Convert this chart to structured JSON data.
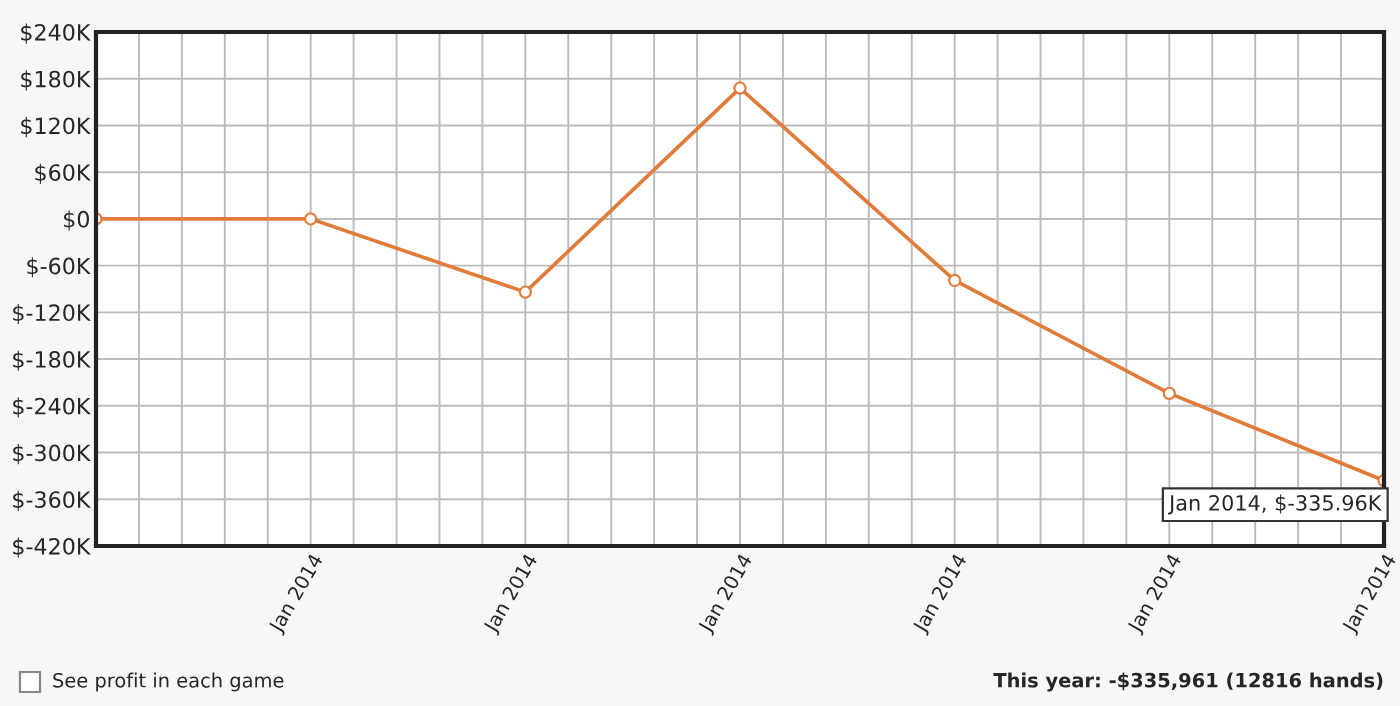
{
  "chart_data": {
    "type": "line",
    "categories": [
      null,
      "Jan 2014",
      "Jan 2014",
      "Jan 2014",
      "Jan 2014",
      "Jan 2014",
      "Jan 2014"
    ],
    "series": [
      {
        "color": "#e07b39",
        "values": [
          0,
          0,
          -94,
          168,
          -79,
          -224,
          -335.96
        ]
      }
    ],
    "ylim": [
      -420,
      240
    ],
    "yticks": [
      {
        "value": -420,
        "label": "$-420K"
      },
      {
        "value": -360,
        "label": "$-360K"
      },
      {
        "value": -300,
        "label": "$-300K"
      },
      {
        "value": -240,
        "label": "$-240K"
      },
      {
        "value": -180,
        "label": "$-180K"
      },
      {
        "value": -120,
        "label": "$-120K"
      },
      {
        "value": -60,
        "label": "$-60K"
      },
      {
        "value": 0,
        "label": "$0"
      },
      {
        "value": 60,
        "label": "$60K"
      },
      {
        "value": 120,
        "label": "$120K"
      },
      {
        "value": 180,
        "label": "$180K"
      },
      {
        "value": 240,
        "label": "$240K"
      }
    ],
    "grid": true,
    "marker": "circle",
    "line_style": "solid",
    "annotations": [
      "Jan 2014, $-335.96K",
      "See profit in each game",
      "This year: -$335,961 (12816 hands)"
    ]
  }
}
